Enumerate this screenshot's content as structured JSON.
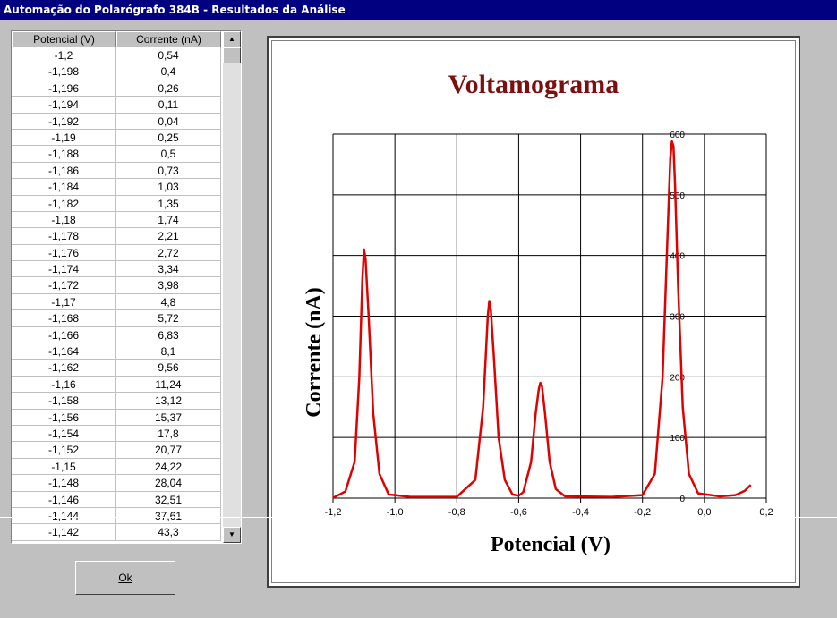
{
  "window": {
    "title": "Automação do Polarógrafo 384B - Resultados da Análise"
  },
  "table": {
    "headers": [
      "Potencial (V)",
      "Corrente (nA)"
    ],
    "rows": [
      [
        "-1,2",
        "0,54"
      ],
      [
        "-1,198",
        "0,4"
      ],
      [
        "-1,196",
        "0,26"
      ],
      [
        "-1,194",
        "0,11"
      ],
      [
        "-1,192",
        "0,04"
      ],
      [
        "-1,19",
        "0,25"
      ],
      [
        "-1,188",
        "0,5"
      ],
      [
        "-1,186",
        "0,73"
      ],
      [
        "-1,184",
        "1,03"
      ],
      [
        "-1,182",
        "1,35"
      ],
      [
        "-1,18",
        "1,74"
      ],
      [
        "-1,178",
        "2,21"
      ],
      [
        "-1,176",
        "2,72"
      ],
      [
        "-1,174",
        "3,34"
      ],
      [
        "-1,172",
        "3,98"
      ],
      [
        "-1,17",
        "4,8"
      ],
      [
        "-1,168",
        "5,72"
      ],
      [
        "-1,166",
        "6,83"
      ],
      [
        "-1,164",
        "8,1"
      ],
      [
        "-1,162",
        "9,56"
      ],
      [
        "-1,16",
        "11,24"
      ],
      [
        "-1,158",
        "13,12"
      ],
      [
        "-1,156",
        "15,37"
      ],
      [
        "-1,154",
        "17,8"
      ],
      [
        "-1,152",
        "20,77"
      ],
      [
        "-1,15",
        "24,22"
      ],
      [
        "-1,148",
        "28,04"
      ],
      [
        "-1,146",
        "32,51"
      ],
      [
        "-1,144",
        "37,61"
      ],
      [
        "-1,142",
        "43,3"
      ]
    ]
  },
  "ok_button": {
    "label": "Ok"
  },
  "chart_data": {
    "type": "line",
    "title": "Voltamograma",
    "xlabel": "Potencial (V)",
    "ylabel": "Corrente (nA)",
    "xlim": [
      -1.2,
      0.2
    ],
    "ylim": [
      0,
      600
    ],
    "xticks": [
      "-1,2",
      "-1,0",
      "-0,8",
      "-0,6",
      "-0,4",
      "-0,2",
      "0,0",
      "0,2"
    ],
    "yticks": [
      "0",
      "100",
      "200",
      "300",
      "400",
      "500",
      "600"
    ],
    "grid": true,
    "line_color": "#e00000",
    "series": [
      {
        "x": [
          -1.2,
          -1.16,
          -1.13,
          -1.115,
          -1.105,
          -1.1,
          -1.095,
          -1.085,
          -1.07,
          -1.05,
          -1.02,
          -0.95,
          -0.8,
          -0.74,
          -0.715,
          -0.7,
          -0.695,
          -0.69,
          -0.68,
          -0.665,
          -0.645,
          -0.62,
          -0.6,
          -0.585,
          -0.56,
          -0.545,
          -0.535,
          -0.53,
          -0.525,
          -0.515,
          -0.5,
          -0.48,
          -0.45,
          -0.3,
          -0.2,
          -0.16,
          -0.135,
          -0.12,
          -0.11,
          -0.105,
          -0.1,
          -0.095,
          -0.085,
          -0.07,
          -0.05,
          -0.02,
          0.05,
          0.1,
          0.13,
          0.15
        ],
        "y": [
          0.5,
          11,
          60,
          200,
          360,
          410,
          395,
          300,
          140,
          40,
          6,
          2,
          2,
          30,
          150,
          300,
          325,
          310,
          230,
          100,
          30,
          6,
          4,
          10,
          60,
          140,
          180,
          190,
          185,
          140,
          60,
          15,
          3,
          2,
          5,
          40,
          200,
          420,
          560,
          588,
          580,
          520,
          350,
          150,
          40,
          8,
          3,
          5,
          12,
          22
        ]
      }
    ]
  }
}
